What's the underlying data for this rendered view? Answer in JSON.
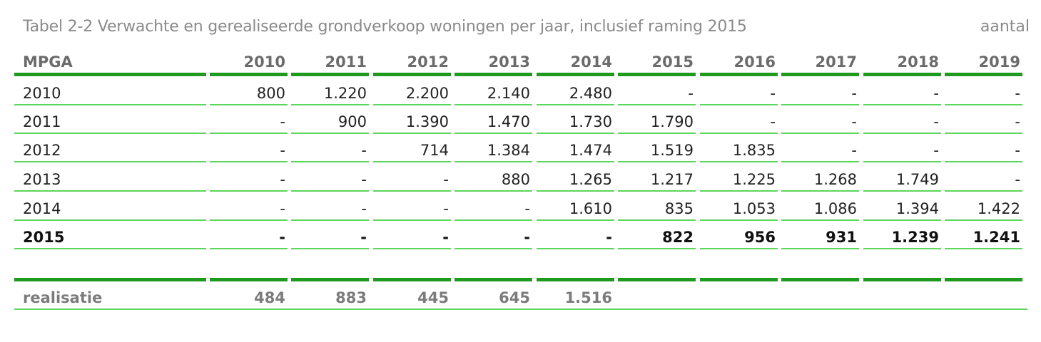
{
  "table": {
    "title": "Tabel 2-2 Verwachte en gerealiseerde grondverkoop woningen per jaar, inclusief raming 2015",
    "unit": "aantal",
    "header": [
      "MPGA",
      "2010",
      "2011",
      "2012",
      "2013",
      "2014",
      "2015",
      "2016",
      "2017",
      "2018",
      "2019"
    ],
    "rows": [
      [
        "2010",
        "800",
        "1.220",
        "2.200",
        "2.140",
        "2.480",
        "-",
        "-",
        "-",
        "-",
        "-"
      ],
      [
        "2011",
        "-",
        "900",
        "1.390",
        "1.470",
        "1.730",
        "1.790",
        "-",
        "-",
        "-",
        "-"
      ],
      [
        "2012",
        "-",
        "-",
        "714",
        "1.384",
        "1.474",
        "1.519",
        "1.835",
        "-",
        "-",
        "-"
      ],
      [
        "2013",
        "-",
        "-",
        "-",
        "880",
        "1.265",
        "1.217",
        "1.225",
        "1.268",
        "1.749",
        "-"
      ],
      [
        "2014",
        "-",
        "-",
        "-",
        "-",
        "1.610",
        "835",
        "1.053",
        "1.086",
        "1.394",
        "1.422"
      ],
      [
        "2015",
        "-",
        "-",
        "-",
        "-",
        "-",
        "822",
        "956",
        "931",
        "1.239",
        "1.241"
      ]
    ],
    "realisatie": [
      "realisatie",
      "484",
      "883",
      "445",
      "645",
      "1.516",
      "",
      "",
      "",
      "",
      ""
    ]
  },
  "colors": {
    "thick_line": "#1f9a1f",
    "thin_line": "#5cd65c",
    "title_text": "#8a8a8a"
  }
}
